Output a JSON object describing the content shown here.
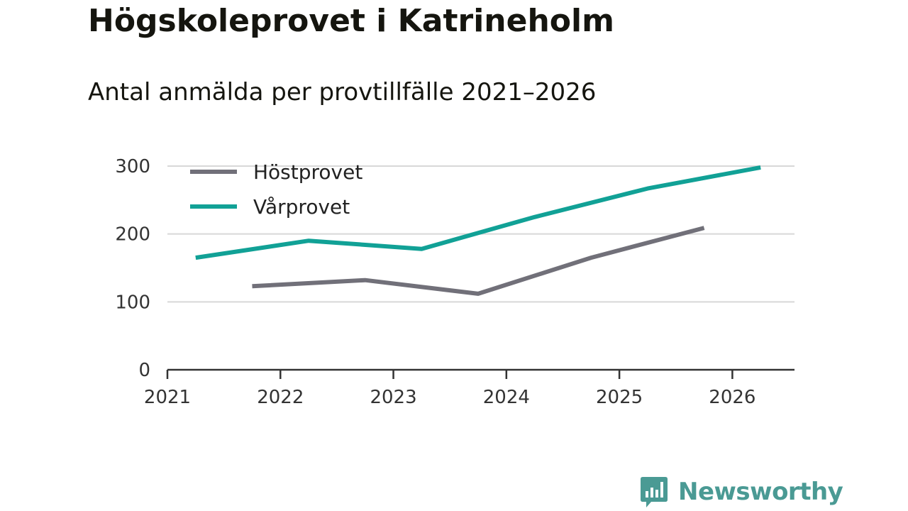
{
  "header": {
    "title": "Högskoleprovet i Katrineholm",
    "subtitle": "Antal anmälda per provtillfälle 2021–2026"
  },
  "chart_data": {
    "type": "line",
    "title": "Högskoleprovet i Katrineholm",
    "subtitle": "Antal anmälda per provtillfälle 2021–2026",
    "xlabel": "",
    "ylabel": "",
    "xlim": [
      2021,
      2026.55
    ],
    "ylim": [
      0,
      300
    ],
    "x_ticks": [
      "2021",
      "2022",
      "2023",
      "2024",
      "2025",
      "2026"
    ],
    "y_ticks": [
      "0",
      "100",
      "200",
      "300"
    ],
    "grid": true,
    "legend_position": "top-left",
    "series": [
      {
        "name": "Höstprovet",
        "color": "#717079",
        "x": [
          2021.75,
          2022.75,
          2023.75,
          2024.75,
          2025.75
        ],
        "values": [
          123,
          132,
          112,
          165,
          209
        ]
      },
      {
        "name": "Vårprovet",
        "color": "#11a196",
        "x": [
          2021.25,
          2022.25,
          2023.25,
          2024.25,
          2025.25,
          2026.25
        ],
        "values": [
          165,
          190,
          178,
          225,
          267,
          298
        ]
      }
    ]
  },
  "footer": {
    "brand": "Newsworthy",
    "brand_color": "#4a9a94",
    "logo_icon": "bar-chart-speech-icon"
  }
}
